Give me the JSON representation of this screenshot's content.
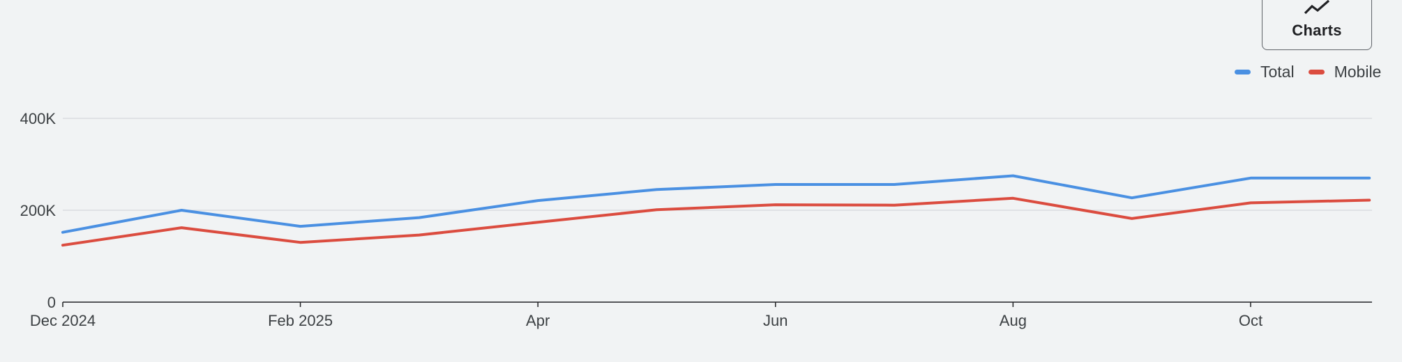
{
  "toolbar": {
    "charts_label": "Charts",
    "charts_icon": "trend-line-icon"
  },
  "legend": {
    "placement": "top-right",
    "items": [
      {
        "label": "Total",
        "color": "#4a90e2"
      },
      {
        "label": "Mobile",
        "color": "#db4c3f"
      }
    ]
  },
  "chart_data": {
    "type": "line",
    "title": "",
    "xlabel": "",
    "ylabel": "",
    "ylim": [
      0,
      400000
    ],
    "grid": true,
    "x": [
      "2024-12",
      "2025-01",
      "2025-02",
      "2025-03",
      "2025-04",
      "2025-05",
      "2025-06",
      "2025-07",
      "2025-08",
      "2025-09",
      "2025-10",
      "2025-11"
    ],
    "x_tick_labels": [
      "Dec 2024",
      "Feb 2025",
      "Apr",
      "Jun",
      "Aug",
      "Oct"
    ],
    "y_tick_labels": [
      "0",
      "200K",
      "400K"
    ],
    "series": [
      {
        "name": "Total",
        "color": "#4a90e2",
        "values": [
          152000,
          200000,
          165000,
          184000,
          221000,
          245000,
          256000,
          256000,
          275000,
          227000,
          270000,
          270000
        ]
      },
      {
        "name": "Mobile",
        "color": "#db4c3f",
        "values": [
          124000,
          162000,
          130000,
          146000,
          174000,
          201000,
          212000,
          211000,
          226000,
          182000,
          216000,
          222000
        ]
      }
    ]
  }
}
